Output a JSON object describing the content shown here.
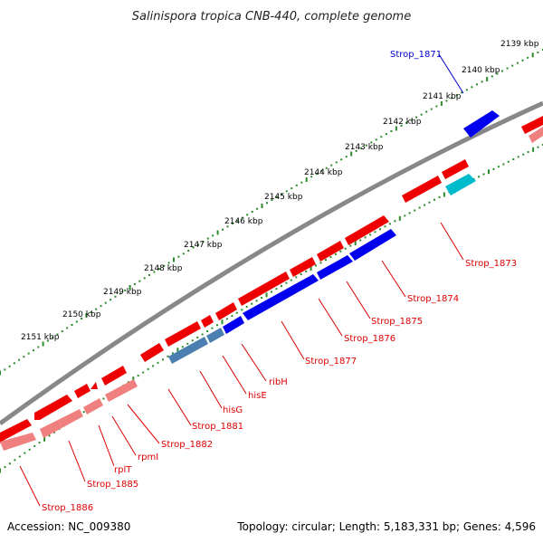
{
  "title": "Salinispora tropica CNB-440, complete genome",
  "footer": {
    "accession": "Accession: NC_009380",
    "summary": "Topology: circular; Length: 5,183,331 bp; Genes: 4,596"
  },
  "ticks": [
    "2139 kbp",
    "2140 kbp",
    "2141 kbp",
    "2142 kbp",
    "2143 kbp",
    "2144 kbp",
    "2145 kbp",
    "2146 kbp",
    "2147 kbp",
    "2148 kbp",
    "2149 kbp",
    "2150 kbp",
    "2151 kbp"
  ],
  "colors": {
    "forward_cds": "#ee0000",
    "forward_cds_light": "#f08080",
    "reverse_cds": "#0000ee",
    "reverse_cds_steel": "#4a7fb0",
    "reverse_cds_cyan": "#00bbcc",
    "backbone": "#888888",
    "tick_dots": "#2a8a2a",
    "label_blue": "#0000cc",
    "label_red": "#dd0000"
  },
  "gene_labels": [
    {
      "text": "Strop_1871",
      "color": "blue"
    },
    {
      "text": "Strop_1873",
      "color": "red"
    },
    {
      "text": "Strop_1874",
      "color": "red"
    },
    {
      "text": "Strop_1875",
      "color": "red"
    },
    {
      "text": "Strop_1876",
      "color": "red"
    },
    {
      "text": "Strop_1877",
      "color": "red"
    },
    {
      "text": "ribH",
      "color": "red"
    },
    {
      "text": "hisE",
      "color": "red"
    },
    {
      "text": "hisG",
      "color": "red"
    },
    {
      "text": "Strop_1881",
      "color": "red"
    },
    {
      "text": "Strop_1882",
      "color": "red"
    },
    {
      "text": "rpmI",
      "color": "red"
    },
    {
      "text": "rplT",
      "color": "red"
    },
    {
      "text": "Strop_1885",
      "color": "red"
    },
    {
      "text": "Strop_1886",
      "color": "red"
    }
  ]
}
